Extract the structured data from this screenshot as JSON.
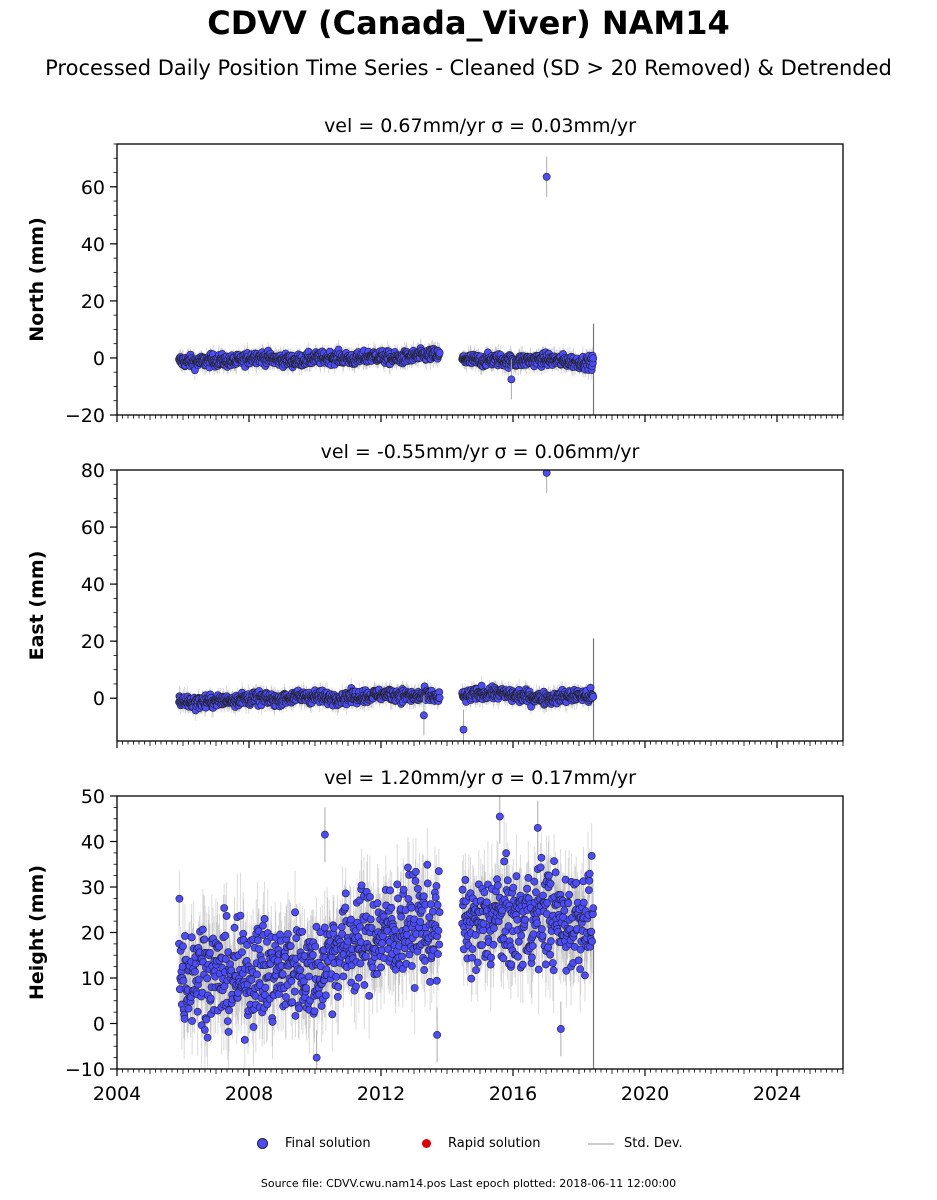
{
  "title": "CDVV (Canada_Viver) NAM14",
  "subtitle": "Processed Daily Position Time Series - Cleaned (SD > 20 Removed) & Detrended",
  "legend": {
    "final": {
      "label": "Final solution",
      "color": "#4b4bff"
    },
    "rapid": {
      "label": "Rapid solution",
      "color": "#e00000"
    },
    "std": {
      "label": "Std. Dev.",
      "color": "#cccccc"
    }
  },
  "footer": "Source file: CDVV.cwu.nam14.pos  Last epoch plotted: 2018-06-11 12:00:00",
  "chart_data": [
    {
      "type": "scatter",
      "title": "vel = 0.67mm/yr   σ = 0.03mm/yr",
      "ylabel": "North (mm)",
      "xlim": [
        2004,
        2026
      ],
      "ylim": [
        -20,
        75
      ],
      "yticks": [
        -20,
        0,
        20,
        40,
        60
      ],
      "ytick_labels": [
        "−20",
        "0",
        "20",
        "40",
        "60"
      ],
      "xticks": [
        2004,
        2008,
        2012,
        2016,
        2020,
        2024
      ],
      "show_xtick_labels": false,
      "grid": false,
      "outliers": [
        {
          "x": 2017.02,
          "y": 63.5
        },
        {
          "x": 2015.95,
          "y": -7.5
        }
      ],
      "series": [
        {
          "name": "Final solution",
          "x": [
            2005.9,
            2006.4,
            2007.0,
            2007.6,
            2008.2,
            2008.8,
            2009.4,
            2010.0,
            2010.6,
            2011.2,
            2011.8,
            2012.4,
            2013.0,
            2013.5,
            2013.75,
            2014.5,
            2015.0,
            2015.5,
            2016.0,
            2016.5,
            2017.0,
            2017.5,
            2018.0,
            2018.4
          ],
          "y": [
            -1,
            -1.5,
            -0.8,
            -1.2,
            0.5,
            -0.5,
            -1,
            -0.2,
            0.3,
            -0.5,
            0.8,
            -0.3,
            0.5,
            1.2,
            0.8,
            -0.5,
            -1,
            -0.5,
            -1.2,
            -0.8,
            -0.5,
            -1,
            -1.5,
            -1.5
          ]
        }
      ]
    },
    {
      "type": "scatter",
      "title": "vel = -0.55mm/yr   σ = 0.06mm/yr",
      "ylabel": "East (mm)",
      "xlim": [
        2004,
        2026
      ],
      "ylim": [
        -15,
        80
      ],
      "yticks": [
        0,
        20,
        40,
        60,
        80
      ],
      "ytick_labels": [
        "0",
        "20",
        "40",
        "60",
        "80"
      ],
      "xticks": [
        2004,
        2008,
        2012,
        2016,
        2020,
        2024
      ],
      "show_xtick_labels": false,
      "grid": false,
      "outliers": [
        {
          "x": 2017.02,
          "y": 79
        },
        {
          "x": 2014.5,
          "y": -11
        },
        {
          "x": 2013.3,
          "y": -6
        }
      ],
      "series": [
        {
          "name": "Final solution",
          "x": [
            2005.9,
            2006.4,
            2007.0,
            2007.6,
            2008.2,
            2008.8,
            2009.4,
            2010.0,
            2010.6,
            2011.2,
            2011.8,
            2012.4,
            2013.0,
            2013.5,
            2013.75,
            2014.5,
            2015.0,
            2015.5,
            2016.0,
            2016.5,
            2017.0,
            2017.5,
            2018.0,
            2018.4
          ],
          "y": [
            -1,
            -1.5,
            -1,
            -0.5,
            0,
            -0.5,
            0.5,
            0.5,
            0,
            0.5,
            1,
            1.5,
            0.5,
            1,
            0,
            0.5,
            1.5,
            2,
            1,
            0.5,
            0,
            0.5,
            1,
            0.5
          ]
        }
      ]
    },
    {
      "type": "scatter",
      "title": "vel = 1.20mm/yr   σ = 0.17mm/yr",
      "ylabel": "Height (mm)",
      "xlim": [
        2004,
        2026
      ],
      "ylim": [
        -10,
        50
      ],
      "yticks": [
        -10,
        0,
        10,
        20,
        30,
        40,
        50
      ],
      "ytick_labels": [
        "−10",
        "0",
        "10",
        "20",
        "30",
        "40",
        "50"
      ],
      "xticks": [
        2004,
        2008,
        2012,
        2016,
        2020,
        2024
      ],
      "xtick_labels": [
        "2004",
        "2008",
        "2012",
        "2016",
        "2020",
        "2024"
      ],
      "show_xtick_labels": true,
      "grid": false,
      "outliers": [
        {
          "x": 2010.3,
          "y": 41.5
        },
        {
          "x": 2015.6,
          "y": 45.5
        },
        {
          "x": 2016.75,
          "y": 43
        },
        {
          "x": 2010.05,
          "y": -7.5
        },
        {
          "x": 2013.7,
          "y": -2.5
        },
        {
          "x": 2017.45,
          "y": -1.2
        }
      ],
      "series": [
        {
          "name": "Final solution",
          "x": [
            2005.9,
            2006.4,
            2007.0,
            2007.6,
            2008.2,
            2008.8,
            2009.4,
            2010.0,
            2010.6,
            2011.2,
            2011.8,
            2012.4,
            2013.0,
            2013.5,
            2013.75,
            2014.5,
            2015.0,
            2015.5,
            2016.0,
            2016.5,
            2017.0,
            2017.5,
            2018.0,
            2018.4
          ],
          "y": [
            10,
            12,
            11,
            10,
            12,
            11,
            13,
            11,
            16,
            18,
            19,
            20,
            22,
            21,
            21,
            22,
            21,
            24,
            22,
            23,
            25,
            22,
            23,
            24
          ]
        }
      ]
    }
  ]
}
